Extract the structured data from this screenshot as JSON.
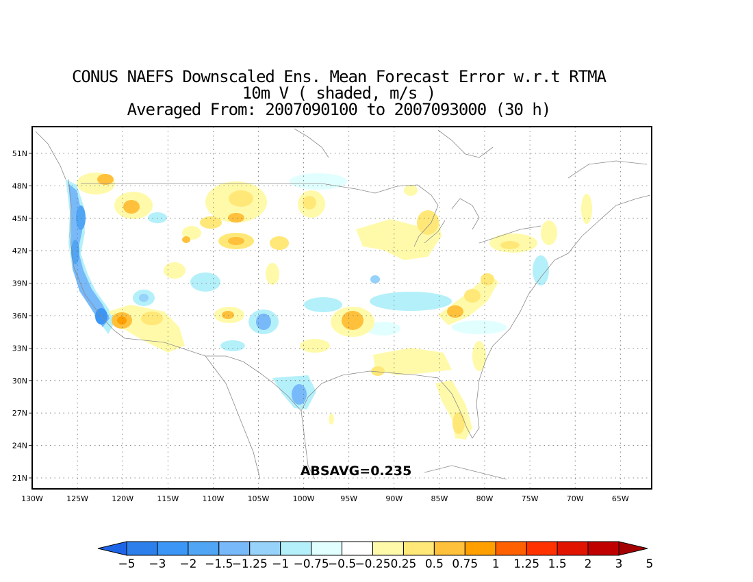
{
  "title": {
    "line1": "CONUS NAEFS Downscaled Ens. Mean Forecast Error w.r.t RTMA",
    "line2": "10m V ( shaded, m/s )",
    "line3": "Averaged From: 2007090100 to 2007093000 (30 h)"
  },
  "map": {
    "lon_labels": [
      "130W",
      "125W",
      "120W",
      "115W",
      "110W",
      "105W",
      "100W",
      "95W",
      "90W",
      "85W",
      "80W",
      "75W",
      "70W",
      "65W"
    ],
    "lat_labels": [
      "51N",
      "48N",
      "45N",
      "42N",
      "39N",
      "36N",
      "33N",
      "30N",
      "27N",
      "24N",
      "21N"
    ],
    "absavg_text": "ABSAVG=0.235"
  },
  "colorbar": {
    "colors": [
      "#1e64e6",
      "#2d80eb",
      "#3c96f5",
      "#50a5f5",
      "#78b9fa",
      "#96d2fa",
      "#b4f0fa",
      "#e1ffff",
      "#ffffff",
      "#fffaaa",
      "#ffe878",
      "#ffc03c",
      "#ffa000",
      "#ff6000",
      "#ff3200",
      "#e11400",
      "#c00000",
      "#a50000"
    ],
    "labels": [
      "−5",
      "−3",
      "−2",
      "−1.5",
      "−1.25",
      "−1",
      "−0.75",
      "−0.5",
      "−0.25",
      "0.25",
      "0.5",
      "0.75",
      "1",
      "1.25",
      "1.5",
      "2",
      "3",
      "5"
    ]
  },
  "colors": {
    "neg_strong": "#3c96f5",
    "neg_mid": "#78b9fa",
    "neg_light": "#b4f0fa",
    "pos_light": "#fffaaa",
    "pos_mid": "#ffe878",
    "pos_strong": "#ffc03c",
    "pos_max": "#ffa000"
  }
}
